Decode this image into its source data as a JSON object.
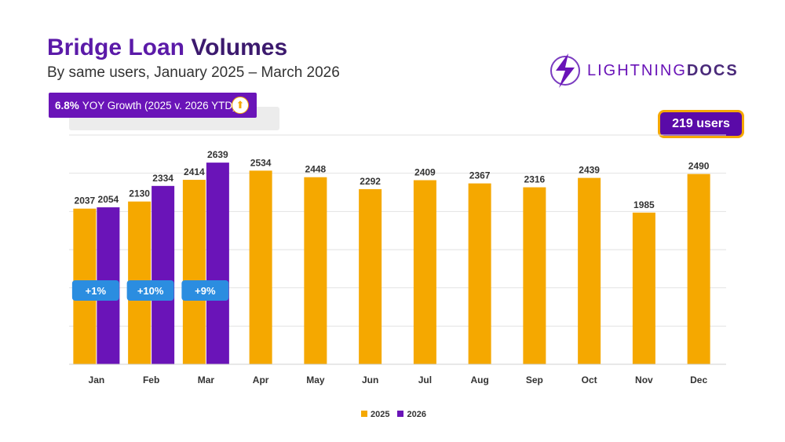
{
  "header": {
    "title_part1": "Bridge Loan",
    "title_part2": "Volumes",
    "subtitle": "By same users, January 2025 – March 2026"
  },
  "yoy": {
    "value": "6.8%",
    "label": "YOY Growth (2025 v. 2026 YTD)",
    "icon": "arrow-up-icon"
  },
  "logo": {
    "part1": "LIGHTNING",
    "part2": "DOCS",
    "icon": "lightning-bolt-icon"
  },
  "users_badge": "219 users",
  "colors": {
    "s2025": "#f5a800",
    "s2026": "#6a14b8",
    "badge": "#2b8de0",
    "brand": "#5b1aa8"
  },
  "chart_data": {
    "type": "bar",
    "ylim": [
      0,
      3000
    ],
    "grid": true,
    "legend": "bottom",
    "categories": [
      "Jan",
      "Feb",
      "Mar",
      "Apr",
      "May",
      "Jun",
      "Jul",
      "Aug",
      "Sep",
      "Oct",
      "Nov",
      "Dec"
    ],
    "series": [
      {
        "name": "2025",
        "values": [
          2037,
          2130,
          2414,
          2534,
          2448,
          2292,
          2409,
          2367,
          2316,
          2439,
          1985,
          2490
        ]
      },
      {
        "name": "2026",
        "values": [
          2054,
          2334,
          2639,
          null,
          null,
          null,
          null,
          null,
          null,
          null,
          null,
          null
        ]
      }
    ],
    "annotations": [
      {
        "category": "Jan",
        "text": "+1%"
      },
      {
        "category": "Feb",
        "text": "+10%"
      },
      {
        "category": "Mar",
        "text": "+9%"
      }
    ]
  }
}
